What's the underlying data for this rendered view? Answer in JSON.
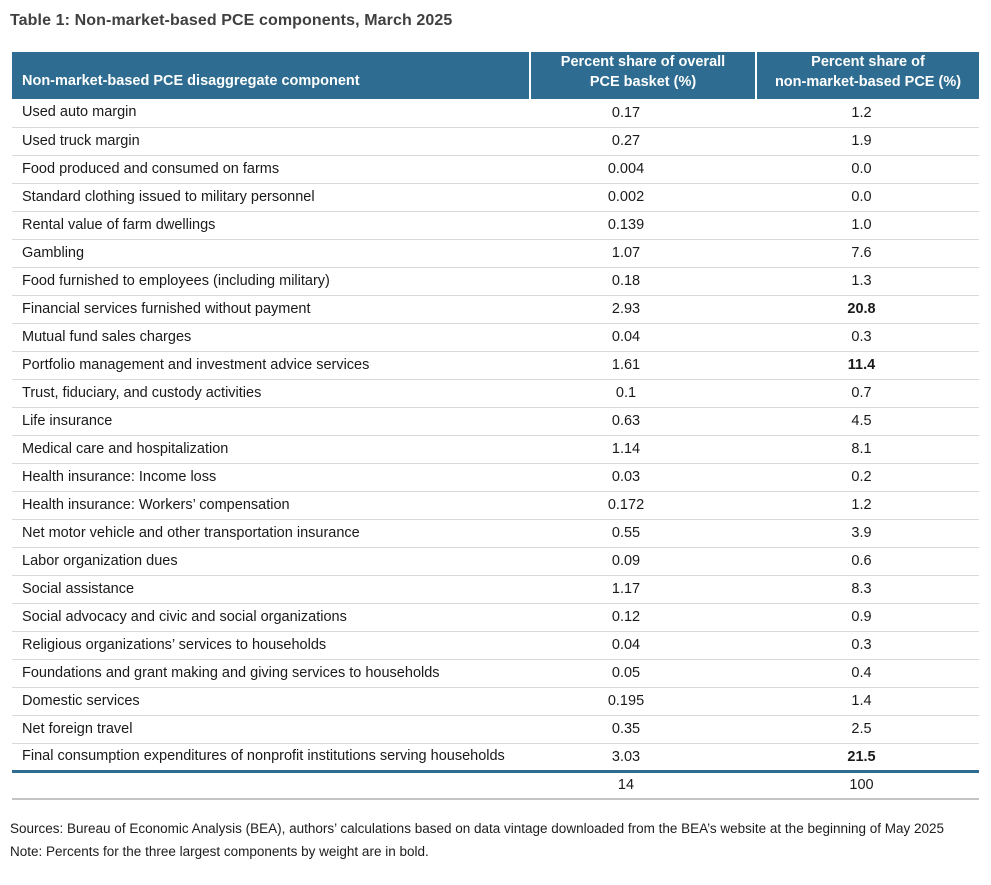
{
  "title": "Table 1: Non-market-based PCE components, March 2025",
  "table": {
    "columns": [
      "Non-market-based PCE disaggregate component",
      "Percent share of overall\nPCE basket (%)",
      "Percent share of\nnon-market-based PCE (%)"
    ],
    "rows": [
      {
        "component": "Used auto margin",
        "pce_basket_share": "0.17",
        "non_market_share": "1.2",
        "bold": false
      },
      {
        "component": "Used truck margin",
        "pce_basket_share": "0.27",
        "non_market_share": "1.9",
        "bold": false
      },
      {
        "component": "Food produced and consumed on farms",
        "pce_basket_share": "0.004",
        "non_market_share": "0.0",
        "bold": false
      },
      {
        "component": "Standard clothing issued to military personnel",
        "pce_basket_share": "0.002",
        "non_market_share": "0.0",
        "bold": false
      },
      {
        "component": "Rental value of farm dwellings",
        "pce_basket_share": "0.139",
        "non_market_share": "1.0",
        "bold": false
      },
      {
        "component": "Gambling",
        "pce_basket_share": "1.07",
        "non_market_share": "7.6",
        "bold": false
      },
      {
        "component": "Food furnished to employees (including military)",
        "pce_basket_share": "0.18",
        "non_market_share": "1.3",
        "bold": false
      },
      {
        "component": "Financial services furnished without payment",
        "pce_basket_share": "2.93",
        "non_market_share": "20.8",
        "bold": true
      },
      {
        "component": "Mutual fund sales charges",
        "pce_basket_share": "0.04",
        "non_market_share": "0.3",
        "bold": false
      },
      {
        "component": "Portfolio management and investment advice services",
        "pce_basket_share": "1.61",
        "non_market_share": "11.4",
        "bold": true
      },
      {
        "component": "Trust, fiduciary, and custody activities",
        "pce_basket_share": "0.1",
        "non_market_share": "0.7",
        "bold": false
      },
      {
        "component": "Life insurance",
        "pce_basket_share": "0.63",
        "non_market_share": "4.5",
        "bold": false
      },
      {
        "component": "Medical care and hospitalization",
        "pce_basket_share": "1.14",
        "non_market_share": "8.1",
        "bold": false
      },
      {
        "component": "Health insurance: Income loss",
        "pce_basket_share": "0.03",
        "non_market_share": "0.2",
        "bold": false
      },
      {
        "component": "Health insurance: Workers’ compensation",
        "pce_basket_share": "0.172",
        "non_market_share": "1.2",
        "bold": false
      },
      {
        "component": "Net motor vehicle and other transportation insurance",
        "pce_basket_share": "0.55",
        "non_market_share": "3.9",
        "bold": false
      },
      {
        "component": "Labor organization dues",
        "pce_basket_share": "0.09",
        "non_market_share": "0.6",
        "bold": false
      },
      {
        "component": "Social assistance",
        "pce_basket_share": "1.17",
        "non_market_share": "8.3",
        "bold": false
      },
      {
        "component": "Social advocacy and civic and social organizations",
        "pce_basket_share": "0.12",
        "non_market_share": "0.9",
        "bold": false
      },
      {
        "component": "Religious organizations’ services to households",
        "pce_basket_share": "0.04",
        "non_market_share": "0.3",
        "bold": false
      },
      {
        "component": "Foundations and grant making and giving services to households",
        "pce_basket_share": "0.05",
        "non_market_share": "0.4",
        "bold": false
      },
      {
        "component": "Domestic services",
        "pce_basket_share": "0.195",
        "non_market_share": "1.4",
        "bold": false
      },
      {
        "component": "Net foreign travel",
        "pce_basket_share": "0.35",
        "non_market_share": "2.5",
        "bold": false
      },
      {
        "component": "Final consumption expenditures of nonprofit institutions serving households",
        "pce_basket_share": "3.03",
        "non_market_share": "21.5",
        "bold": true
      }
    ],
    "total": {
      "component": "",
      "pce_basket_share": "14",
      "non_market_share": "100"
    }
  },
  "footer": {
    "sources": "Sources: Bureau of Economic Analysis (BEA), authors’ calculations based on data vintage downloaded from the BEA’s website at the beginning of May 2025",
    "note": "Note: Percents for the three largest components by weight are in bold."
  },
  "colors": {
    "header_bg": "#2e6d91",
    "header_text": "#ffffff",
    "row_border": "#d9d9d9",
    "accent_border": "#2e6d91",
    "total_border": "#c4c4c4",
    "title_text": "#404040",
    "body_text": "#1a1a1a"
  }
}
